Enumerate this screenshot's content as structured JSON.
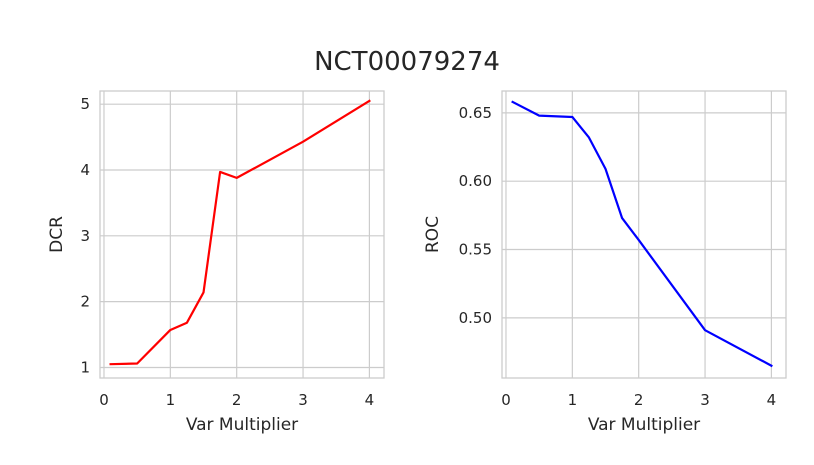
{
  "suptitle": "NCT00079274",
  "chart_data": [
    {
      "type": "line",
      "xlabel": "Var Multiplier",
      "ylabel": "DCR",
      "xlim": [
        -0.06,
        4.22
      ],
      "ylim": [
        0.84,
        5.2
      ],
      "xticks": [
        0,
        1,
        2,
        3,
        4
      ],
      "xtick_labels": [
        "0",
        "1",
        "2",
        "3",
        "4"
      ],
      "yticks": [
        1,
        2,
        3,
        4,
        5
      ],
      "ytick_labels": [
        "1",
        "2",
        "3",
        "4",
        "5"
      ],
      "grid": true,
      "series": [
        {
          "color": "#ff0000",
          "x": [
            0.1,
            0.5,
            1.0,
            1.25,
            1.5,
            1.75,
            2.0,
            3.0,
            4.0
          ],
          "y": [
            1.05,
            1.06,
            1.57,
            1.68,
            2.14,
            3.97,
            3.88,
            4.43,
            5.05
          ]
        }
      ]
    },
    {
      "type": "line",
      "xlabel": "Var Multiplier",
      "ylabel": "ROC",
      "xlim": [
        -0.06,
        4.22
      ],
      "ylim": [
        0.456,
        0.666
      ],
      "xticks": [
        0,
        1,
        2,
        3,
        4
      ],
      "xtick_labels": [
        "0",
        "1",
        "2",
        "3",
        "4"
      ],
      "yticks": [
        0.5,
        0.55,
        0.6,
        0.65
      ],
      "ytick_labels": [
        "0.50",
        "0.55",
        "0.60",
        "0.65"
      ],
      "grid": true,
      "series": [
        {
          "color": "#0000ff",
          "x": [
            0.1,
            0.5,
            1.0,
            1.25,
            1.5,
            1.75,
            2.0,
            3.0,
            4.0
          ],
          "y": [
            0.658,
            0.648,
            0.647,
            0.632,
            0.609,
            0.573,
            0.557,
            0.491,
            0.465
          ]
        }
      ]
    }
  ]
}
